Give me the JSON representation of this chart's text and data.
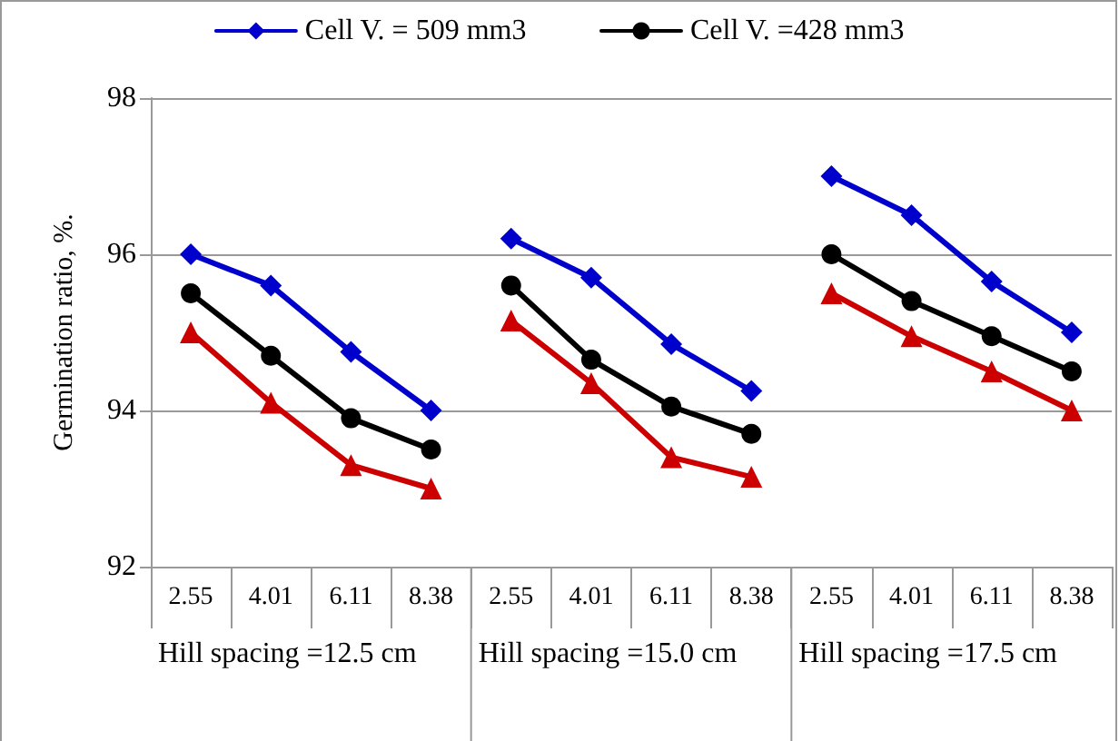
{
  "chart_data": {
    "type": "line",
    "ylabel": "Germination ratio, %.",
    "categories": [
      "2.55",
      "4.01",
      "6.11",
      "8.38",
      "2.55",
      "4.01",
      "6.11",
      "8.38",
      "2.55",
      "4.01",
      "6.11",
      "8.38"
    ],
    "annotations": [
      "Hill spacing =12.5 cm",
      "Hill spacing =15.0 cm",
      "Hill spacing =17.5 cm"
    ],
    "series": [
      {
        "name": "Cell V. = 509 mm3",
        "color": "#0000cc",
        "marker": "diamond",
        "values": [
          96.0,
          95.6,
          94.75,
          94.0,
          96.2,
          95.7,
          94.85,
          94.25,
          97.0,
          96.5,
          95.65,
          95.0
        ]
      },
      {
        "name": "Cell V. =428 mm3",
        "color": "#000000",
        "marker": "circle",
        "values": [
          95.5,
          94.7,
          93.9,
          93.5,
          95.6,
          94.65,
          94.05,
          93.7,
          96.0,
          95.4,
          94.95,
          94.5
        ]
      },
      {
        "color": "#cc0000",
        "marker": "triangle",
        "values": [
          95.0,
          94.1,
          93.3,
          93.0,
          95.15,
          94.35,
          93.4,
          93.15,
          95.5,
          94.95,
          94.5,
          94.0
        ]
      }
    ],
    "ylim": [
      92,
      98
    ],
    "yticks": [
      92,
      94,
      96,
      98
    ],
    "grid": "y",
    "legend": "top"
  }
}
